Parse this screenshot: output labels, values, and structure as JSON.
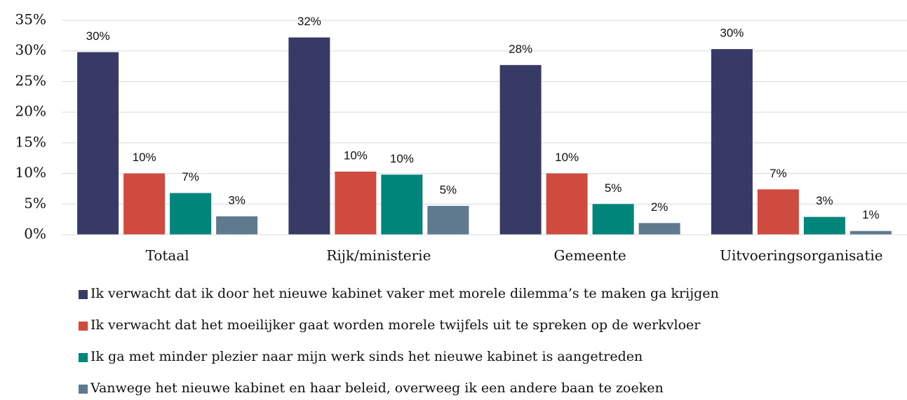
{
  "chart_data": {
    "type": "bar",
    "categories": [
      "Totaal",
      "Rijk/ministerie",
      "Gemeente",
      "Uitvoeringsorganisatie"
    ],
    "series": [
      {
        "name": "Ik verwacht dat ik door het nieuwe kabinet vaker met morele dilemma’s te maken ga krijgen",
        "color": "#363a64",
        "values": [
          29.8,
          32.2,
          27.7,
          30.3
        ],
        "value_labels": [
          "30%",
          "32%",
          "28%",
          "30%"
        ]
      },
      {
        "name": "Ik verwacht dat het moeilijker gaat worden morele twijfels uit te spreken op de werkvloer",
        "color": "#cf4b40",
        "values": [
          10.0,
          10.3,
          10.0,
          7.4
        ],
        "value_labels": [
          "10%",
          "10%",
          "10%",
          "7%"
        ]
      },
      {
        "name": "Ik ga met minder plezier naar mijn werk sinds het nieuwe kabinet is aangetreden",
        "color": "#00857a",
        "values": [
          6.8,
          9.8,
          5.0,
          2.9
        ],
        "value_labels": [
          "7%",
          "10%",
          "5%",
          "3%"
        ]
      },
      {
        "name": "Vanwege het nieuwe kabinet en haar beleid, overweeg ik een andere baan te zoeken",
        "color": "#5f7a8e",
        "values": [
          3.0,
          4.7,
          1.9,
          0.6
        ],
        "value_labels": [
          "3%",
          "5%",
          "2%",
          "1%"
        ]
      }
    ],
    "ylim": [
      0,
      35
    ],
    "yticks": [
      {
        "value": 0,
        "label": "0%"
      },
      {
        "value": 5,
        "label": "5%"
      },
      {
        "value": 10,
        "label": "10%"
      },
      {
        "value": 15,
        "label": "15%"
      },
      {
        "value": 20,
        "label": "20%"
      },
      {
        "value": 25,
        "label": "25%"
      },
      {
        "value": 30,
        "label": "30%"
      },
      {
        "value": 35,
        "label": "35%"
      }
    ],
    "grid": true
  }
}
